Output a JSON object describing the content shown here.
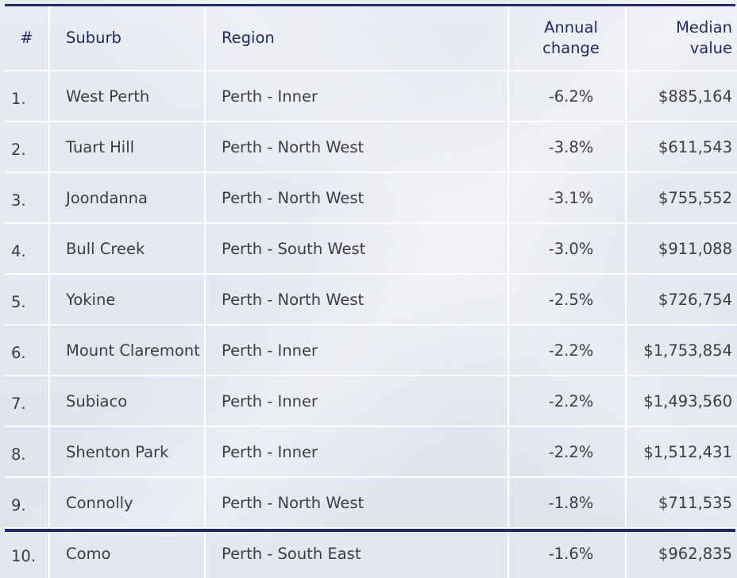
{
  "table": {
    "headers": {
      "num": "#",
      "suburb": "Suburb",
      "region": "Region",
      "annual_change_line1": "Annual",
      "annual_change_line2": "change",
      "median_value_line1": "Median",
      "median_value_line2": "value"
    },
    "rows": [
      {
        "rank": "1.",
        "suburb": "West Perth",
        "region": "Perth - Inner",
        "annual_change": "-6.2%",
        "median_value": "$885,164"
      },
      {
        "rank": "2.",
        "suburb": "Tuart Hill",
        "region": "Perth - North West",
        "annual_change": "-3.8%",
        "median_value": "$611,543"
      },
      {
        "rank": "3.",
        "suburb": "Joondanna",
        "region": "Perth - North West",
        "annual_change": "-3.1%",
        "median_value": "$755,552"
      },
      {
        "rank": "4.",
        "suburb": "Bull Creek",
        "region": "Perth - South West",
        "annual_change": "-3.0%",
        "median_value": "$911,088"
      },
      {
        "rank": "5.",
        "suburb": "Yokine",
        "region": "Perth - North West",
        "annual_change": "-2.5%",
        "median_value": "$726,754"
      },
      {
        "rank": "6.",
        "suburb": "Mount Claremont",
        "region": "Perth - Inner",
        "annual_change": "-2.2%",
        "median_value": "$1,753,854"
      },
      {
        "rank": "7.",
        "suburb": "Subiaco",
        "region": "Perth - Inner",
        "annual_change": "-2.2%",
        "median_value": "$1,493,560"
      },
      {
        "rank": "8.",
        "suburb": "Shenton Park",
        "region": "Perth - Inner",
        "annual_change": "-2.2%",
        "median_value": "$1,512,431"
      },
      {
        "rank": "9.",
        "suburb": "Connolly",
        "region": "Perth - North West",
        "annual_change": "-1.8%",
        "median_value": "$711,535"
      },
      {
        "rank": "10.",
        "suburb": "Como",
        "region": "Perth - South East",
        "annual_change": "-1.6%",
        "median_value": "$962,835"
      }
    ]
  },
  "colors": {
    "header_text": "#1f2a6b",
    "body_text": "#3c3c46",
    "rule": "#1f2a6b",
    "background": "#e3e7ef",
    "grid_lines": "#ffffff"
  }
}
